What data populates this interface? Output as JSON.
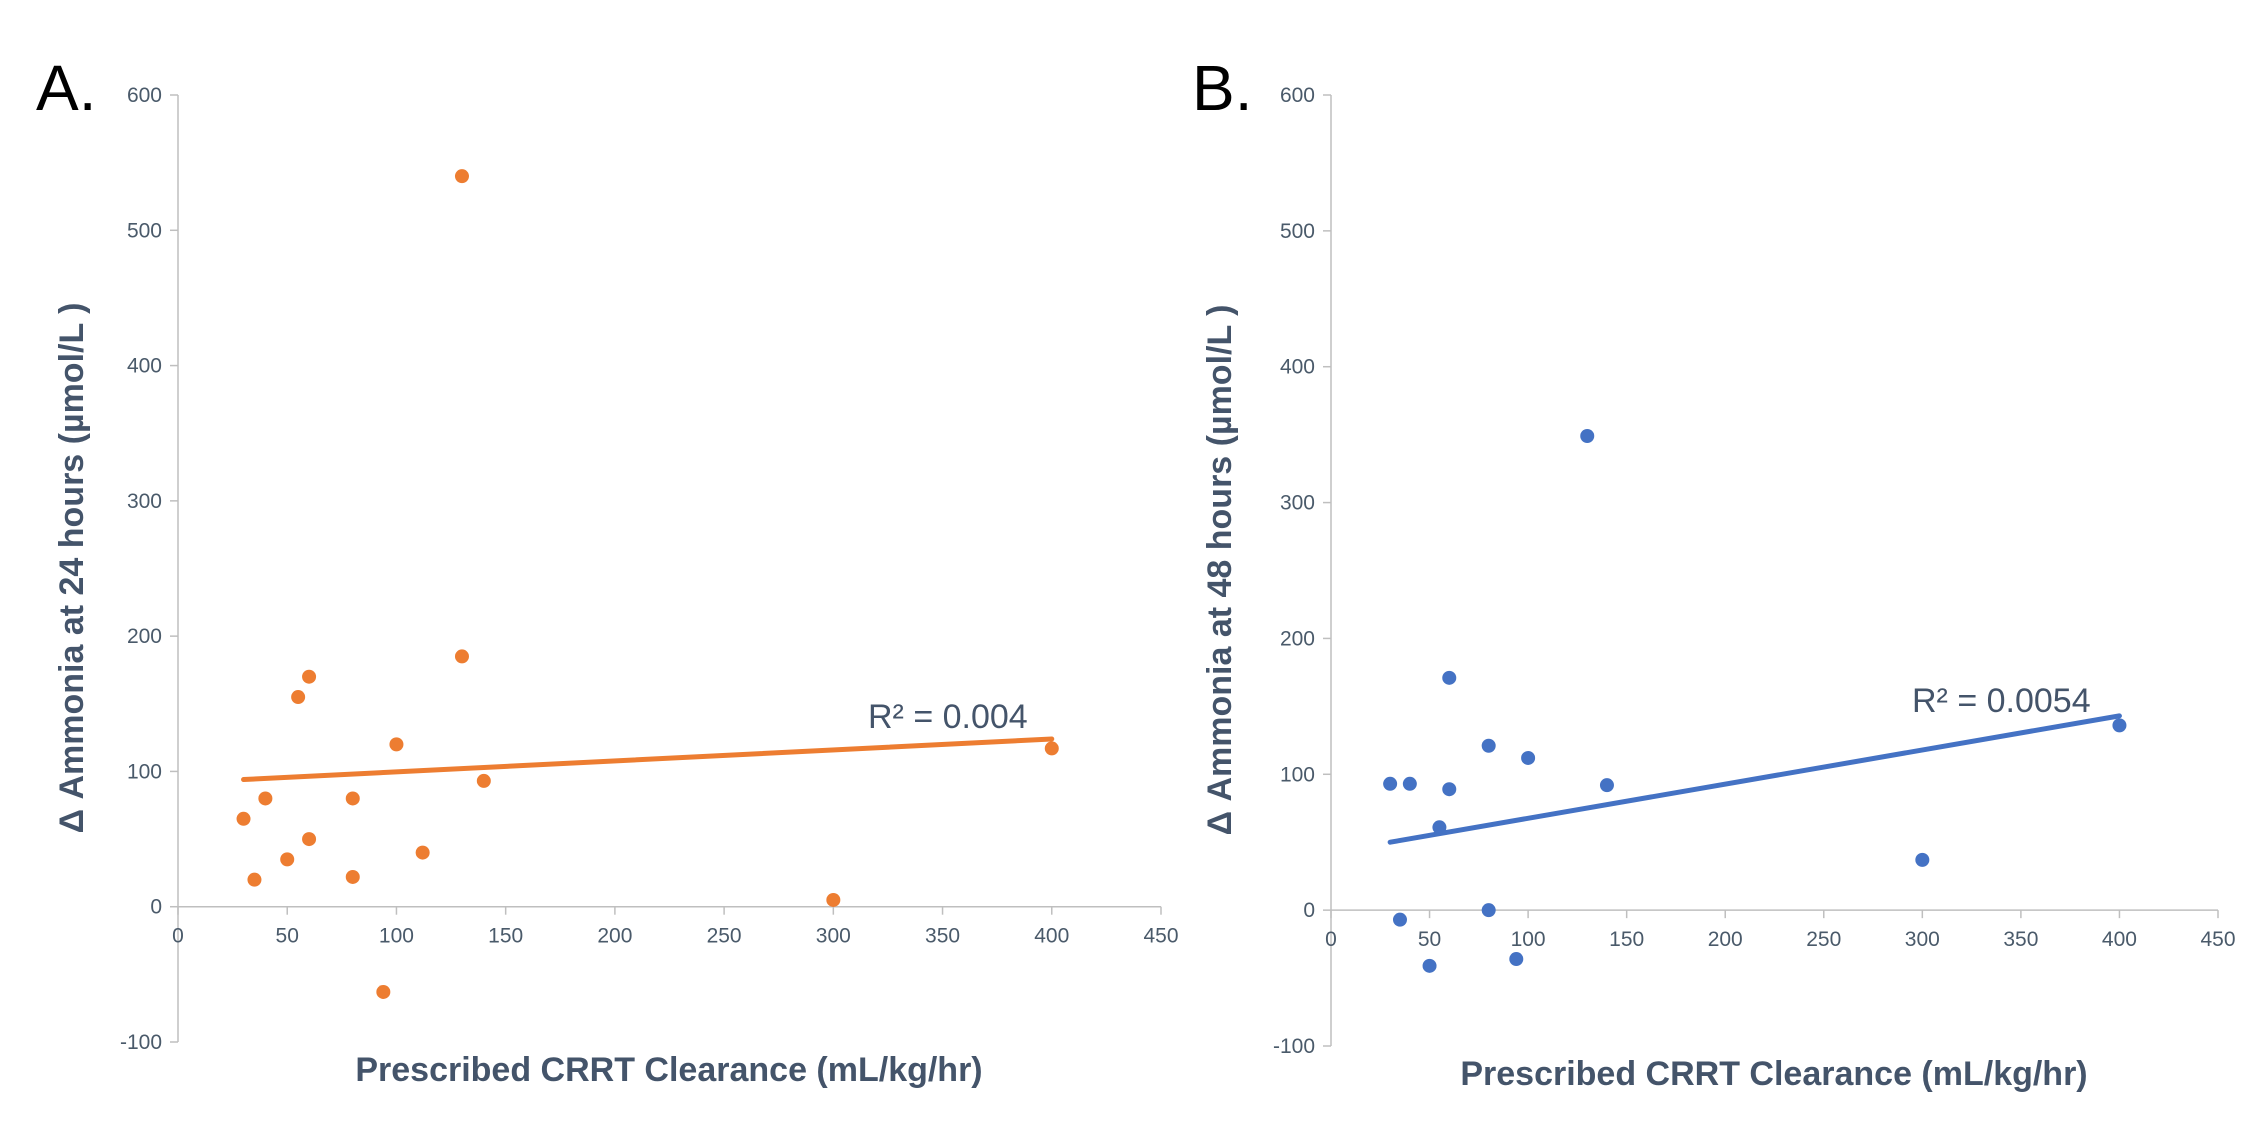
{
  "chart_data": [
    {
      "type": "scatter",
      "panel_label": "A.",
      "xlabel": "Prescribed CRRT Clearance  (mL/kg/hr)",
      "ylabel": "Δ Ammonia at 24 hours (µmol/L )",
      "xlim": [
        0,
        450
      ],
      "ylim": [
        -100,
        600
      ],
      "x_ticks": [
        0,
        50,
        100,
        150,
        200,
        250,
        300,
        350,
        400,
        450
      ],
      "y_ticks": [
        -100,
        0,
        100,
        200,
        300,
        400,
        500,
        600
      ],
      "grid": false,
      "color": "#ED7D31",
      "points": [
        {
          "x": 30,
          "y": 65
        },
        {
          "x": 35,
          "y": 20
        },
        {
          "x": 40,
          "y": 80
        },
        {
          "x": 50,
          "y": 35
        },
        {
          "x": 55,
          "y": 155
        },
        {
          "x": 60,
          "y": 170
        },
        {
          "x": 60,
          "y": 50
        },
        {
          "x": 80,
          "y": 80
        },
        {
          "x": 80,
          "y": 22
        },
        {
          "x": 94,
          "y": -63
        },
        {
          "x": 100,
          "y": 120
        },
        {
          "x": 112,
          "y": 40
        },
        {
          "x": 130,
          "y": 540
        },
        {
          "x": 130,
          "y": 185
        },
        {
          "x": 140,
          "y": 93
        },
        {
          "x": 300,
          "y": 5
        },
        {
          "x": 400,
          "y": 117
        }
      ],
      "trendline": {
        "x": [
          30,
          400
        ],
        "y": [
          94,
          124
        ]
      },
      "annotation": "R² = 0.004"
    },
    {
      "type": "scatter",
      "panel_label": "B.",
      "xlabel": "Prescribed CRRT Clearance (mL/kg/hr)",
      "ylabel": "Δ Ammonia at 48 hours (µmol/L )",
      "xlim": [
        0,
        450
      ],
      "ylim": [
        -100,
        600
      ],
      "x_ticks": [
        0,
        50,
        100,
        150,
        200,
        250,
        300,
        350,
        400,
        450
      ],
      "y_ticks": [
        -100,
        0,
        100,
        200,
        300,
        400,
        500,
        600
      ],
      "grid": false,
      "color": "#4472C4",
      "points": [
        {
          "x": 30,
          "y": 93
        },
        {
          "x": 35,
          "y": -7
        },
        {
          "x": 40,
          "y": 93
        },
        {
          "x": 50,
          "y": -41
        },
        {
          "x": 55,
          "y": 61
        },
        {
          "x": 60,
          "y": 171
        },
        {
          "x": 60,
          "y": 89
        },
        {
          "x": 80,
          "y": 121
        },
        {
          "x": 80,
          "y": 0
        },
        {
          "x": 94,
          "y": -36
        },
        {
          "x": 100,
          "y": 112
        },
        {
          "x": 130,
          "y": 349
        },
        {
          "x": 140,
          "y": 92
        },
        {
          "x": 300,
          "y": 37
        },
        {
          "x": 400,
          "y": 136
        }
      ],
      "trendline": {
        "x": [
          30,
          400
        ],
        "y": [
          50,
          143
        ]
      },
      "annotation": "R² = 0.0054"
    }
  ]
}
